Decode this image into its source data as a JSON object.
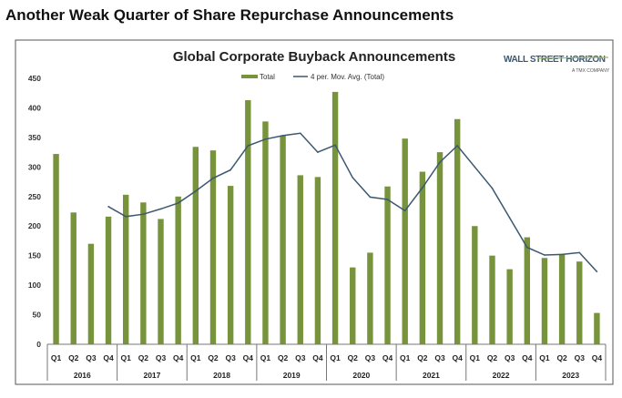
{
  "headline": "Another Weak Quarter of Share Repurchase Announcements",
  "logo": {
    "name": "WALL STREET HORIZON",
    "tagline": "A TMX COMPANY"
  },
  "colors": {
    "bar": "#77933c",
    "line": "#3b5870",
    "frame": "#555555"
  },
  "chart_data": {
    "type": "bar+line",
    "title": "Global Corporate Buyback Announcements",
    "legend": {
      "placement": "top-center",
      "entries": [
        "Total",
        "4 per. Mov. Avg. (Total)"
      ]
    },
    "ylim": [
      0,
      450
    ],
    "yticks": [
      0,
      50,
      100,
      150,
      200,
      250,
      300,
      350,
      400,
      450
    ],
    "grid": false,
    "years": [
      "2016",
      "2017",
      "2018",
      "2019",
      "2020",
      "2021",
      "2022",
      "2023"
    ],
    "quarters": [
      "Q1",
      "Q2",
      "Q3",
      "Q4"
    ],
    "series": [
      {
        "name": "Total",
        "type": "bar",
        "values": [
          322,
          223,
          170,
          216,
          253,
          240,
          212,
          250,
          334,
          328,
          268,
          413,
          377,
          353,
          286,
          283,
          427,
          130,
          155,
          267,
          348,
          292,
          325,
          381,
          200,
          150,
          127,
          181,
          146,
          153,
          140,
          53
        ]
      },
      {
        "name": "4 per. Mov. Avg. (Total)",
        "type": "line",
        "values": [
          null,
          null,
          null,
          233,
          216,
          220,
          229,
          239,
          259,
          281,
          295,
          336,
          347,
          353,
          357,
          325,
          337,
          282,
          249,
          245,
          226,
          265,
          308,
          336,
          300,
          264,
          214,
          164,
          151,
          152,
          155,
          123
        ]
      }
    ]
  }
}
